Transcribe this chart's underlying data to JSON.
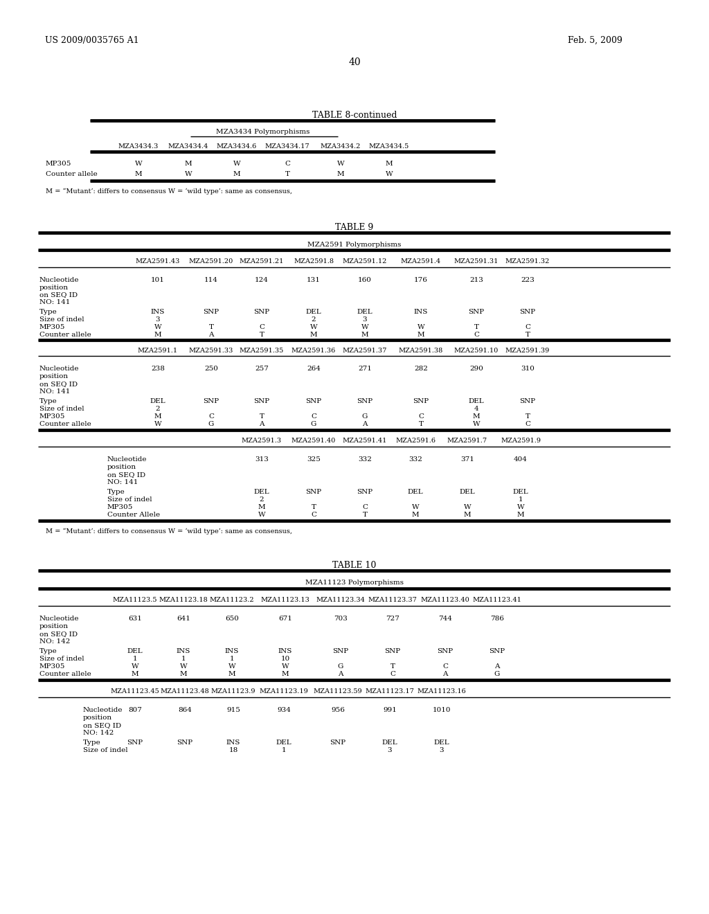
{
  "page_number": "40",
  "patent_left": "US 2009/0035765 A1",
  "patent_right": "Feb. 5, 2009",
  "background_color": "#ffffff"
}
